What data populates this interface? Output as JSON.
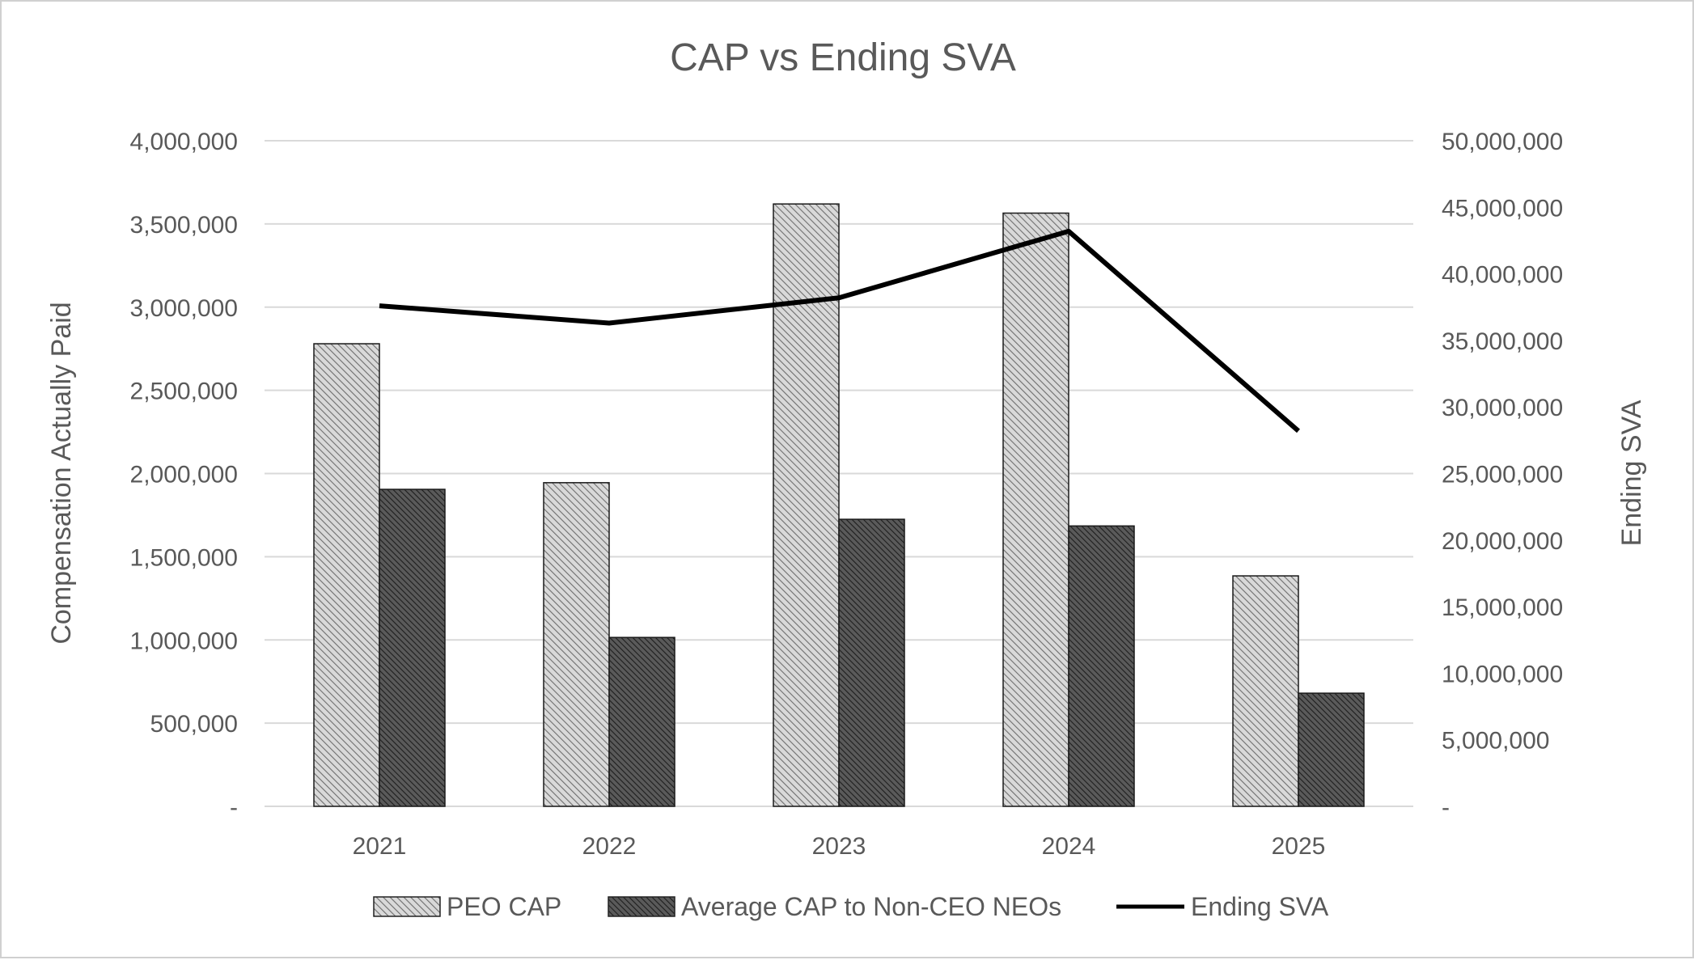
{
  "chart_data": {
    "type": "bar",
    "title": "CAP vs Ending SVA",
    "categories": [
      "2021",
      "2022",
      "2023",
      "2024",
      "2025"
    ],
    "ylabel": "Compensation Actually Paid",
    "y2label": "Ending SVA",
    "ylim": [
      0,
      4000000
    ],
    "y2lim": [
      0,
      50000000
    ],
    "yticks": [
      "-",
      "500,000",
      "1,000,000",
      "1,500,000",
      "2,000,000",
      "2,500,000",
      "3,000,000",
      "3,500,000",
      "4,000,000"
    ],
    "y2ticks": [
      "-",
      "5,000,000",
      "10,000,000",
      "15,000,000",
      "20,000,000",
      "25,000,000",
      "30,000,000",
      "35,000,000",
      "40,000,000",
      "45,000,000",
      "50,000,000"
    ],
    "grid": true,
    "legend_position": "bottom",
    "series": [
      {
        "name": "PEO CAP",
        "kind": "bar",
        "axis": "left",
        "values": [
          2780000,
          1945000,
          3620000,
          3565000,
          1385000
        ]
      },
      {
        "name": "Average CAP to Non-CEO NEOs",
        "kind": "bar",
        "axis": "left",
        "values": [
          1905000,
          1015000,
          1725000,
          1685000,
          680000
        ]
      },
      {
        "name": "Ending SVA",
        "kind": "line",
        "axis": "right",
        "values": [
          37600000,
          36300000,
          38200000,
          43200000,
          28200000
        ]
      }
    ]
  },
  "colors": {
    "bar1_fill": "#d9d9d9",
    "bar1_hatch": "#6e6e6e",
    "bar2_fill": "#5a5a5a",
    "bar2_hatch": "#1e1e1e",
    "line": "#000000",
    "grid": "#d9d9d9",
    "text": "#595959"
  }
}
